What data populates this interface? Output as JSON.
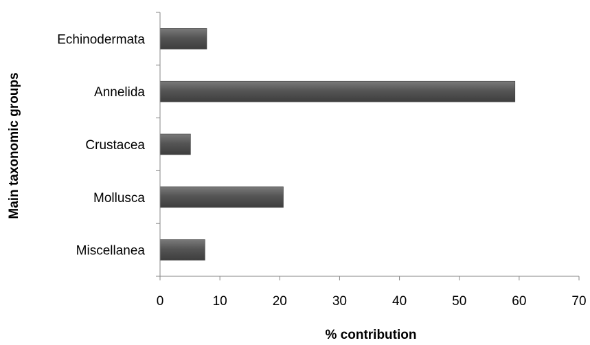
{
  "chart_data": {
    "type": "bar",
    "orientation": "horizontal",
    "categories": [
      "Echinodermata",
      "Annelida",
      "Crustacea",
      "Mollusca",
      "Miscellanea"
    ],
    "values": [
      7.8,
      59.3,
      5.1,
      20.6,
      7.5
    ],
    "xlabel": "% contribution",
    "ylabel": "Main taxonomic groups",
    "xlim": [
      0,
      70
    ],
    "xticks": [
      0,
      10,
      20,
      30,
      40,
      50,
      60,
      70
    ],
    "grid": false,
    "bar_color": "#595959"
  }
}
